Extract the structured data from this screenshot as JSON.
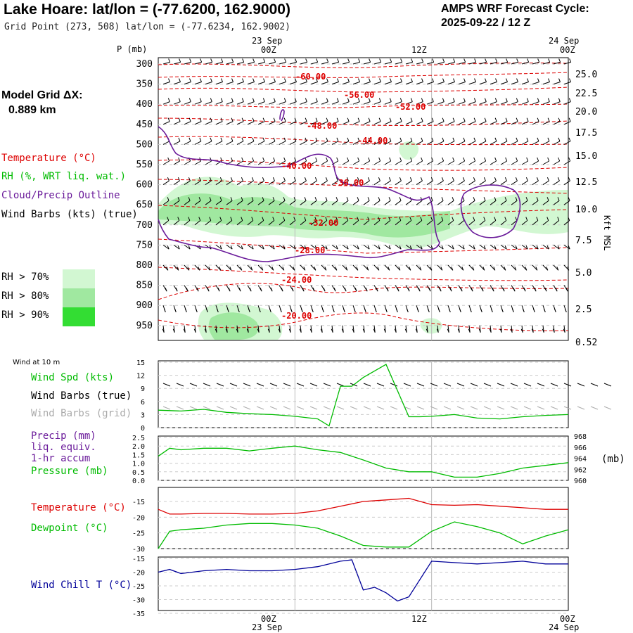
{
  "header": {
    "title": "Lake Hoare:  lat/lon = (-77.6200, 162.9000)",
    "grid_point": "Grid Point (273, 508) lat/lon = (-77.6234, 162.9002)",
    "cycle_line1": "AMPS WRF Forecast Cycle:",
    "cycle_line2": "2025-09-22 / 12  Z"
  },
  "model": {
    "label": "Model Grid ΔX:",
    "value": "0.889 km"
  },
  "time_axis": {
    "top_dates": [
      "23 Sep",
      "24 Sep"
    ],
    "top_hours": [
      "00Z",
      "12Z",
      "00Z"
    ],
    "bottom_hours": [
      "00Z",
      "12Z",
      "00Z"
    ],
    "bottom_dates": [
      "23 Sep",
      "24 Sep"
    ]
  },
  "sounding": {
    "p_label": "P (mb)",
    "pressure_levels": [
      "300",
      "350",
      "400",
      "450",
      "500",
      "550",
      "600",
      "650",
      "700",
      "750",
      "800",
      "850",
      "900",
      "950"
    ],
    "height_label": "Kft MSL",
    "height_ticks": [
      "25.0",
      "22.5",
      "20.0",
      "17.5",
      "15.0",
      "12.5",
      "10.0",
      "7.5",
      "5.0",
      "2.5",
      "0.52"
    ],
    "legend": {
      "temperature": "Temperature (°C)",
      "rh": "RH (%, WRT liq. wat.)",
      "cloud": "Cloud/Precip Outline",
      "wind": "Wind Barbs (kts) (true)"
    },
    "rh_legend": [
      {
        "label": "RH > 70%",
        "color": "#d2f7d2"
      },
      {
        "label": "RH > 80%",
        "color": "#a0e8a0"
      },
      {
        "label": "RH > 90%",
        "color": "#33dd33"
      }
    ],
    "temp_contour_labels": [
      "-60.00",
      "-56.00",
      "-52.00",
      "-48.00",
      "-44.00",
      "-40.00",
      "-36.00",
      "-32.00",
      "-28.00",
      "-24.00",
      "-20.00"
    ]
  },
  "wind_panel": {
    "header": "Wind at 10 m",
    "legend_spd": "Wind Spd (kts)",
    "legend_true": "Wind Barbs (true)",
    "legend_grid": "Wind Barbs (grid)",
    "yticks": [
      "15",
      "12",
      "9",
      "6",
      "3",
      "0"
    ]
  },
  "precip_panel": {
    "legend_precip": "Precip (mm)",
    "legend_liq": "liq. equiv.",
    "legend_accum": "1-hr accum",
    "legend_pres": "Pressure (mb)",
    "left_ticks": [
      "2.5",
      "2.0",
      "1.5",
      "1.0",
      "0.5",
      "0.0"
    ],
    "right_ticks": [
      "968",
      "966",
      "964",
      "962",
      "960"
    ],
    "units": "(mb)"
  },
  "temp_panel": {
    "legend_t": "Temperature (°C)",
    "legend_td": "Dewpoint (°C)",
    "yticks": [
      "-15",
      "-20",
      "-25",
      "-30"
    ]
  },
  "chill_panel": {
    "legend": "Wind Chill T (°C)",
    "yticks": [
      "-15",
      "-20",
      "-25",
      "-30",
      "-35"
    ]
  },
  "colors": {
    "temperature": "#dd0000",
    "rh_green": "#00bb00",
    "cloud_outline": "#6a1a9a",
    "wind_chill": "#000099",
    "grid_dash": "#aaaaaa"
  },
  "chart_data": [
    {
      "type": "line",
      "title": "Wind Spd (kts)",
      "x_hours": [
        -12,
        -10,
        -8,
        -6,
        -4,
        -2,
        0,
        2,
        3,
        4,
        5,
        6,
        8,
        10,
        11,
        12,
        14,
        16,
        18,
        20,
        22,
        24
      ],
      "values": [
        4.0,
        3.8,
        4.2,
        3.5,
        3.2,
        3.0,
        2.6,
        2.0,
        0.4,
        9.5,
        9.5,
        11.5,
        14.5,
        2.5,
        2.5,
        2.6,
        3.0,
        2.2,
        2.0,
        2.5,
        2.8,
        3.0
      ],
      "ylim": [
        0,
        15
      ],
      "yticks": [
        0,
        3,
        6,
        9,
        12,
        15
      ]
    },
    {
      "type": "line",
      "title": "Pressure (mb)",
      "x_hours": [
        -12,
        -11,
        -10,
        -8,
        -6,
        -4,
        -2,
        0,
        2,
        4,
        6,
        8,
        10,
        12,
        14,
        16,
        18,
        20,
        22,
        24
      ],
      "values": [
        964.5,
        966.0,
        965.7,
        966.0,
        966.0,
        965.5,
        966.0,
        966.4,
        965.7,
        965.2,
        963.8,
        962.3,
        961.6,
        961.6,
        960.6,
        960.6,
        961.3,
        962.3,
        962.8,
        963.3
      ],
      "ylim": [
        960,
        968
      ],
      "right_axis": true,
      "precip_mm": 0.0
    },
    {
      "type": "line",
      "title": "Temperature and Dewpoint (°C)",
      "x_hours": [
        -12,
        -11,
        -10,
        -8,
        -6,
        -4,
        -2,
        0,
        2,
        4,
        6,
        8,
        10,
        12,
        14,
        16,
        18,
        20,
        22,
        24
      ],
      "series": [
        {
          "name": "Temperature (°C)",
          "values": [
            -17.5,
            -19.0,
            -19.0,
            -18.8,
            -18.8,
            -19.0,
            -19.0,
            -18.8,
            -18.0,
            -16.5,
            -15.0,
            -14.5,
            -14.0,
            -16.0,
            -16.2,
            -16.0,
            -16.5,
            -17.0,
            -17.5,
            -17.5
          ],
          "color": "#dd0000"
        },
        {
          "name": "Dewpoint (°C)",
          "values": [
            -30.0,
            -24.5,
            -24.0,
            -23.5,
            -22.5,
            -22.0,
            -22.0,
            -22.5,
            -23.5,
            -26.0,
            -29.0,
            -29.5,
            -29.5,
            -24.5,
            -21.5,
            -23.0,
            -25.0,
            -28.5,
            -26.0,
            -24.0
          ],
          "color": "#00bb00"
        }
      ],
      "ylim": [
        -30,
        -12.5
      ]
    },
    {
      "type": "line",
      "title": "Wind Chill T (°C)",
      "x_hours": [
        -12,
        -11,
        -10,
        -8,
        -6,
        -4,
        -2,
        0,
        2,
        4,
        5,
        6,
        7,
        8,
        9,
        10,
        12,
        14,
        16,
        18,
        20,
        22,
        24
      ],
      "values": [
        -20.0,
        -19.0,
        -20.5,
        -19.5,
        -19.0,
        -19.5,
        -19.5,
        -19.0,
        -18.0,
        -16.0,
        -15.5,
        -26.5,
        -25.5,
        -27.5,
        -30.5,
        -29.0,
        -16.0,
        -16.5,
        -17.0,
        -16.5,
        -16.0,
        -17.0,
        -17.0
      ],
      "ylim": [
        -35,
        -15
      ]
    }
  ]
}
